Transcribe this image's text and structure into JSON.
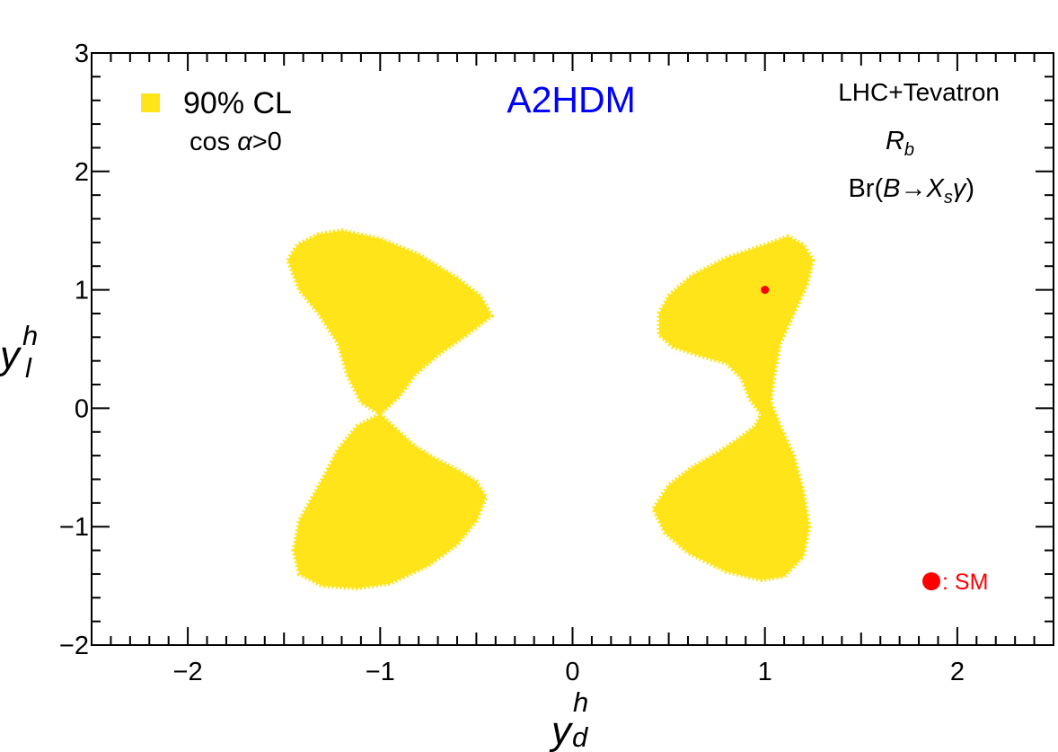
{
  "chart_data": {
    "type": "scatter",
    "title": "A2HDM",
    "xlabel": {
      "main": "y",
      "sup": "h",
      "sub": "d"
    },
    "ylabel": {
      "main": "y",
      "sup": "h",
      "sub": "l"
    },
    "xlim": [
      -2.5,
      2.5
    ],
    "ylim": [
      -2,
      3
    ],
    "xticks": [
      {
        "value": -2,
        "label": "−2"
      },
      {
        "value": -1,
        "label": "−1"
      },
      {
        "value": 0,
        "label": "0"
      },
      {
        "value": 1,
        "label": "1"
      },
      {
        "value": 2,
        "label": "2"
      }
    ],
    "yticks": [
      {
        "value": -2,
        "label": "−2"
      },
      {
        "value": -1,
        "label": "−1"
      },
      {
        "value": 0,
        "label": "0"
      },
      {
        "value": 1,
        "label": "1"
      },
      {
        "value": 2,
        "label": "2"
      },
      {
        "value": 3,
        "label": "3"
      }
    ],
    "colors": {
      "region": "#ffe41a",
      "sm": "#ff0000",
      "title": "#0000ff",
      "axis": "#000000"
    },
    "legend": {
      "label": "90% CL",
      "condition_prefix": "cos ",
      "condition_symbol": "α",
      "condition_suffix": ">0"
    },
    "constraints": {
      "line1": "LHC+Tevatron",
      "rb_main": "R",
      "rb_sub": "b",
      "br_prefix": "Br(",
      "br_B": "B",
      "br_arrow": "→",
      "br_X": "X",
      "br_s": "s",
      "br_gamma": "γ",
      "br_suffix": ")"
    },
    "sm_point": {
      "x": 1,
      "y": 1
    },
    "sm_legend_label": ": SM",
    "regions": [
      {
        "name": "left-upper-lobe",
        "polygon": [
          [
            -1.48,
            1.25
          ],
          [
            -1.43,
            1.38
          ],
          [
            -1.32,
            1.47
          ],
          [
            -1.2,
            1.5
          ],
          [
            -1.0,
            1.43
          ],
          [
            -0.8,
            1.3
          ],
          [
            -0.6,
            1.1
          ],
          [
            -0.48,
            0.95
          ],
          [
            -0.42,
            0.78
          ],
          [
            -0.55,
            0.62
          ],
          [
            -0.7,
            0.45
          ],
          [
            -0.82,
            0.28
          ],
          [
            -0.9,
            0.1
          ],
          [
            -1.0,
            -0.05
          ],
          [
            -1.1,
            0.05
          ],
          [
            -1.17,
            0.28
          ],
          [
            -1.22,
            0.55
          ],
          [
            -1.32,
            0.8
          ],
          [
            -1.42,
            1.0
          ]
        ]
      },
      {
        "name": "left-lower-lobe",
        "polygon": [
          [
            -1.0,
            -0.05
          ],
          [
            -0.9,
            -0.2
          ],
          [
            -0.82,
            -0.32
          ],
          [
            -0.72,
            -0.42
          ],
          [
            -0.6,
            -0.52
          ],
          [
            -0.5,
            -0.62
          ],
          [
            -0.45,
            -0.75
          ],
          [
            -0.5,
            -0.95
          ],
          [
            -0.6,
            -1.15
          ],
          [
            -0.75,
            -1.33
          ],
          [
            -0.95,
            -1.48
          ],
          [
            -1.12,
            -1.52
          ],
          [
            -1.3,
            -1.5
          ],
          [
            -1.42,
            -1.4
          ],
          [
            -1.45,
            -1.2
          ],
          [
            -1.42,
            -0.95
          ],
          [
            -1.3,
            -0.6
          ],
          [
            -1.22,
            -0.35
          ],
          [
            -1.12,
            -0.15
          ]
        ]
      },
      {
        "name": "right-upper-lobe",
        "polygon": [
          [
            0.45,
            0.8
          ],
          [
            0.5,
            0.95
          ],
          [
            0.62,
            1.12
          ],
          [
            0.8,
            1.27
          ],
          [
            1.0,
            1.38
          ],
          [
            1.12,
            1.45
          ],
          [
            1.2,
            1.38
          ],
          [
            1.25,
            1.25
          ],
          [
            1.22,
            1.05
          ],
          [
            1.15,
            0.8
          ],
          [
            1.08,
            0.55
          ],
          [
            1.05,
            0.3
          ],
          [
            1.03,
            0.05
          ],
          [
            0.98,
            -0.05
          ],
          [
            0.92,
            0.08
          ],
          [
            0.88,
            0.25
          ],
          [
            0.8,
            0.38
          ],
          [
            0.65,
            0.45
          ],
          [
            0.52,
            0.52
          ],
          [
            0.45,
            0.62
          ]
        ]
      },
      {
        "name": "right-lower-lobe",
        "polygon": [
          [
            0.98,
            -0.05
          ],
          [
            1.03,
            0.05
          ],
          [
            1.08,
            -0.15
          ],
          [
            1.15,
            -0.4
          ],
          [
            1.2,
            -0.7
          ],
          [
            1.23,
            -1.0
          ],
          [
            1.2,
            -1.25
          ],
          [
            1.1,
            -1.42
          ],
          [
            0.98,
            -1.45
          ],
          [
            0.8,
            -1.38
          ],
          [
            0.6,
            -1.22
          ],
          [
            0.48,
            -1.05
          ],
          [
            0.42,
            -0.85
          ],
          [
            0.5,
            -0.65
          ],
          [
            0.62,
            -0.5
          ],
          [
            0.75,
            -0.38
          ],
          [
            0.87,
            -0.25
          ],
          [
            0.95,
            -0.15
          ]
        ]
      }
    ]
  }
}
